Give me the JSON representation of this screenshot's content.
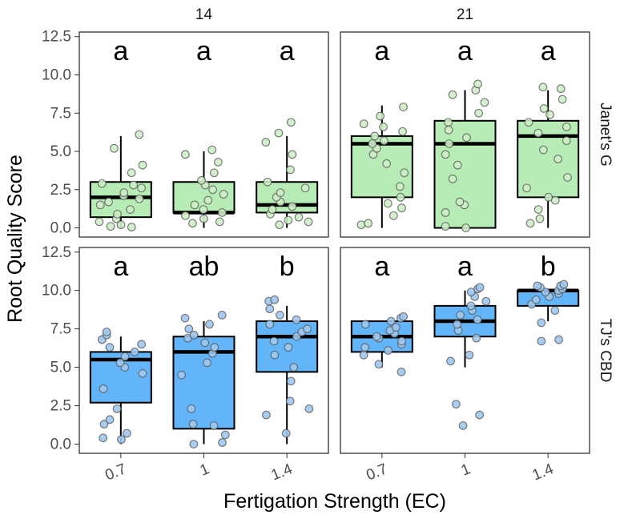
{
  "chart_data": {
    "type": "boxplot",
    "xlabel": "Fertigation Strength (EC)",
    "ylabel": "Root Quality Score",
    "categories": [
      "0.7",
      "1",
      "1.4"
    ],
    "ylim": [
      -0.6,
      12.8
    ],
    "yticks": [
      "0.0",
      "2.5",
      "5.0",
      "7.5",
      "10.0",
      "12.5"
    ],
    "ytick_values": [
      0,
      2.5,
      5,
      7.5,
      10,
      12.5
    ],
    "column_strips": [
      "14",
      "21"
    ],
    "row_strips": [
      "Janet's G",
      "TJ's CBD"
    ],
    "fill_colors": {
      "Janet's G": "#b8ecb6",
      "TJ's CBD": "#62b5f8"
    },
    "point_colors": {
      "Janet's G": "#cdeec5",
      "TJ's CBD": "#9ec8ee"
    },
    "panels": [
      {
        "row": "Janet's G",
        "column": "14",
        "boxes": [
          {
            "category": "0.7",
            "min": 0,
            "q1": 0.7,
            "median": 2,
            "q3": 3,
            "max": 6,
            "points": [
              0.05,
              0.1,
              0.2,
              0.4,
              0.6,
              0.9,
              1.2,
              1.5,
              1.7,
              1.9,
              2.1,
              2.3,
              2.6,
              2.8,
              2.9,
              3.6,
              4.1,
              5.2,
              6.1
            ],
            "letter": "a"
          },
          {
            "category": "1",
            "min": 0,
            "q1": 1,
            "median": 1,
            "q3": 3,
            "max": 5,
            "points": [
              0.3,
              0.4,
              0.6,
              0.8,
              1.0,
              1.2,
              1.5,
              1.8,
              2.2,
              2.5,
              2.8,
              3.1,
              3.6,
              4.3,
              4.8,
              5.1
            ],
            "letter": "a"
          },
          {
            "category": "1.4",
            "min": 0,
            "q1": 1,
            "median": 1.5,
            "q3": 3,
            "max": 6,
            "points": [
              0.2,
              0.4,
              0.5,
              0.7,
              0.9,
              1.2,
              1.4,
              1.7,
              2.0,
              2.3,
              2.6,
              3.0,
              3.8,
              4.8,
              5.6,
              6.2,
              6.9
            ],
            "letter": "a"
          }
        ]
      },
      {
        "row": "Janet's G",
        "column": "21",
        "boxes": [
          {
            "category": "0.7",
            "min": 0,
            "q1": 2,
            "median": 5.5,
            "q3": 6,
            "max": 8,
            "points": [
              0.2,
              0.3,
              0.8,
              1.3,
              1.6,
              2.0,
              2.7,
              3.6,
              4.2,
              4.8,
              5.2,
              5.5,
              5.7,
              6.0,
              6.3,
              6.6,
              6.8,
              7.3,
              7.9
            ],
            "letter": "a"
          },
          {
            "category": "1",
            "min": 0,
            "q1": 0,
            "median": 5.5,
            "q3": 7,
            "max": 9,
            "points": [
              0.0,
              0.1,
              1.0,
              1.5,
              1.7,
              3.2,
              4.1,
              4.8,
              5.5,
              5.9,
              6.4,
              6.9,
              7.5,
              8.2,
              8.7,
              9.0,
              9.4
            ],
            "letter": "a"
          },
          {
            "category": "1.4",
            "min": 0,
            "q1": 2,
            "median": 6,
            "q3": 7,
            "max": 9,
            "points": [
              0.3,
              0.6,
              1.2,
              1.8,
              2.0,
              2.6,
              3.3,
              4.5,
              5.1,
              5.7,
              6.2,
              6.6,
              6.9,
              7.4,
              7.8,
              8.4,
              9.1,
              9.2
            ],
            "letter": "a"
          }
        ]
      },
      {
        "row": "TJ's CBD",
        "column": "14",
        "boxes": [
          {
            "category": "0.7",
            "min": 0,
            "q1": 2.7,
            "median": 5.5,
            "q3": 6,
            "max": 7,
            "points": [
              0.3,
              0.4,
              0.7,
              1.3,
              1.6,
              2.3,
              3.6,
              4.6,
              5.0,
              5.3,
              5.7,
              6.0,
              6.3,
              6.5,
              6.8,
              7.1,
              7.3
            ],
            "letter": "a"
          },
          {
            "category": "1",
            "min": 0,
            "q1": 1,
            "median": 6,
            "q3": 7,
            "max": 8,
            "points": [
              0.0,
              0.1,
              0.6,
              1.2,
              1.3,
              2.3,
              4.5,
              5.3,
              5.9,
              6.3,
              6.6,
              6.9,
              7.1,
              7.5,
              7.8,
              8.2,
              8.4
            ],
            "letter": "ab"
          },
          {
            "category": "1.4",
            "min": 0,
            "q1": 4.7,
            "median": 7,
            "q3": 8,
            "max": 9,
            "points": [
              0.7,
              1.9,
              2.3,
              2.8,
              4.1,
              5.0,
              5.8,
              6.3,
              6.7,
              7.0,
              7.3,
              7.5,
              7.8,
              8.1,
              8.4,
              8.8,
              9.3,
              9.4
            ],
            "letter": "b"
          }
        ]
      },
      {
        "row": "TJ's CBD",
        "column": "21",
        "boxes": [
          {
            "category": "0.7",
            "min": 5,
            "q1": 6,
            "median": 7,
            "q3": 8,
            "max": 8,
            "points": [
              4.7,
              5.2,
              5.8,
              6.1,
              6.3,
              6.5,
              6.7,
              6.9,
              7.0,
              7.2,
              7.4,
              7.6,
              7.8,
              8.0,
              8.2,
              8.3
            ],
            "letter": "a"
          },
          {
            "category": "1",
            "min": 5,
            "q1": 7,
            "median": 8,
            "q3": 9,
            "max": 10,
            "points": [
              1.2,
              1.9,
              2.6,
              5.4,
              5.8,
              6.9,
              7.4,
              7.8,
              8.1,
              8.4,
              8.7,
              9.0,
              9.3,
              9.6,
              9.9,
              10.1,
              10.2
            ],
            "letter": "a"
          },
          {
            "category": "1.4",
            "min": 8,
            "q1": 9,
            "median": 10,
            "q3": 10,
            "max": 10,
            "points": [
              6.7,
              6.8,
              7.9,
              8.7,
              9.1,
              9.4,
              9.6,
              9.8,
              9.9,
              10.0,
              10.1,
              10.2,
              10.3,
              10.3,
              10.4
            ],
            "letter": "b"
          }
        ]
      }
    ]
  }
}
